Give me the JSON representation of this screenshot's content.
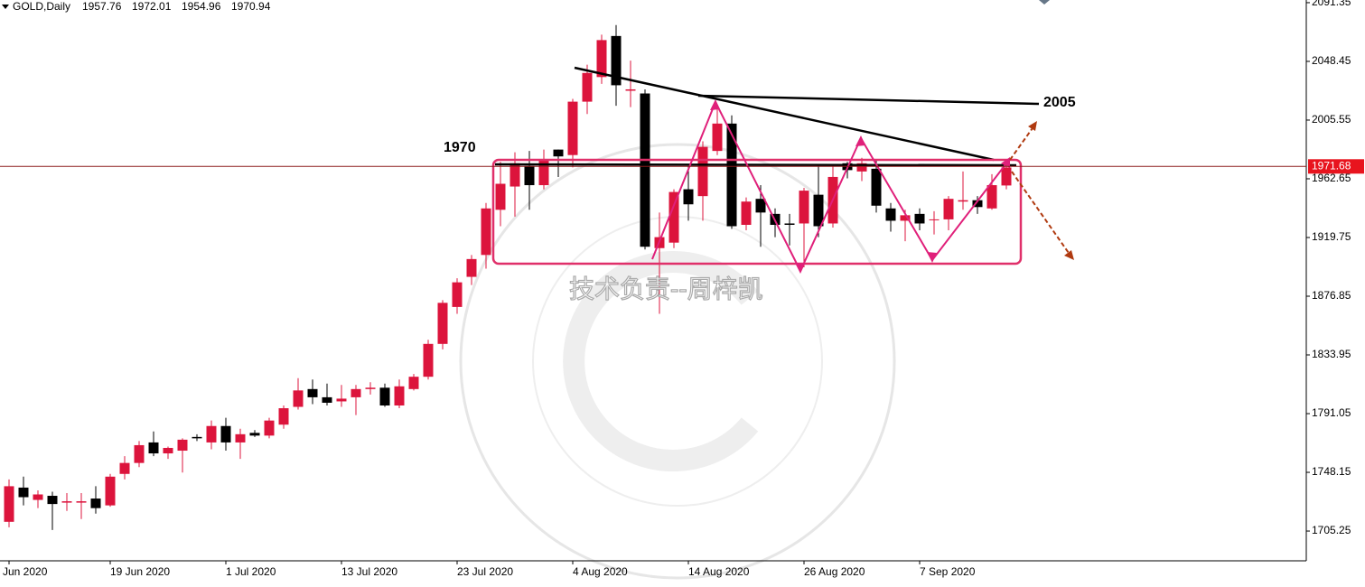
{
  "chart_data": {
    "type": "candlestick",
    "title": "GOLD,Daily",
    "categories": [
      "Jun 2020",
      null,
      null,
      null,
      null,
      null,
      null,
      "19 Jun 2020",
      null,
      null,
      null,
      null,
      null,
      null,
      null,
      "1 Jul 2020",
      null,
      null,
      null,
      null,
      null,
      null,
      null,
      "13 Jul 2020",
      null,
      null,
      null,
      null,
      null,
      null,
      null,
      "23 Jul 2020",
      null,
      null,
      null,
      null,
      null,
      null,
      null,
      "4 Aug 2020",
      null,
      null,
      null,
      null,
      null,
      null,
      null,
      "14 Aug 2020",
      null,
      null,
      null,
      null,
      null,
      null,
      null,
      "26 Aug 2020",
      null,
      null,
      null,
      null,
      null,
      null,
      null,
      "7 Sep 2020",
      null,
      null,
      null,
      null,
      null,
      null
    ],
    "open": [
      1712,
      1737,
      1728,
      1731,
      1726,
      1726,
      1729,
      1724,
      1747,
      1755,
      1770,
      1762,
      1764,
      1774,
      1770,
      1782,
      1770,
      1777,
      1775,
      1783,
      1796,
      1809,
      1803,
      1800,
      1803,
      1809,
      1810,
      1797,
      1809,
      1818,
      1842,
      1869,
      1891,
      1907,
      1940,
      1957,
      1972,
      1958,
      1984,
      1980,
      2019,
      2037,
      2067,
      2027,
      2025,
      1912,
      1916,
      1955,
      1950,
      1983,
      2003,
      1929,
      1948,
      1937,
      1930,
      1930,
      1951,
      1930,
      1974,
      1968,
      1970,
      1941,
      1932,
      1937,
      1933,
      1933,
      1946,
      1947,
      1941,
      1957.76
    ],
    "high": [
      1743,
      1745,
      1735,
      1734,
      1733,
      1733,
      1738,
      1747,
      1760,
      1771,
      1778,
      1767,
      1773,
      1776,
      1786,
      1788,
      1780,
      1779,
      1788,
      1797,
      1817,
      1816,
      1813,
      1812,
      1812,
      1814,
      1813,
      1816,
      1820,
      1845,
      1874,
      1890,
      1907,
      1945,
      1975,
      1982,
      1983,
      1984,
      1984,
      2021,
      2046,
      2068,
      2075,
      2049,
      2028,
      1938,
      1955,
      1972,
      1990,
      2015,
      2009,
      1949,
      1958,
      1941,
      1937,
      1956,
      1973,
      1972,
      1975,
      1978,
      1977,
      1945,
      1940,
      1941,
      1939,
      1950,
      1968,
      1950,
      1966,
      1972.01
    ],
    "low": [
      1708,
      1724,
      1722,
      1706,
      1720,
      1714,
      1718,
      1723,
      1743,
      1752,
      1760,
      1758,
      1748,
      1771,
      1765,
      1764,
      1758,
      1774,
      1773,
      1780,
      1794,
      1798,
      1797,
      1796,
      1790,
      1805,
      1796,
      1795,
      1808,
      1816,
      1838,
      1864,
      1885,
      1897,
      1928,
      1935,
      1940,
      1955,
      1964,
      1971,
      2010,
      2032,
      2016,
      2015,
      1911,
      1864,
      1912,
      1932,
      1932,
      1980,
      1926,
      1925,
      1913,
      1920,
      1914,
      1898,
      1920,
      1927,
      1963,
      1961,
      1938,
      1924,
      1917,
      1925,
      1922,
      1925,
      1940,
      1937,
      1940,
      1954.96
    ],
    "close": [
      1738,
      1730,
      1732,
      1725,
      1727,
      1727,
      1722,
      1745,
      1755,
      1768,
      1762,
      1766,
      1772,
      1773,
      1782,
      1770,
      1776,
      1775,
      1786,
      1795,
      1808,
      1803,
      1799,
      1802,
      1809,
      1810,
      1797,
      1811,
      1818,
      1842,
      1872,
      1887,
      1904,
      1941,
      1959,
      1974,
      1958,
      1976,
      1979,
      2019,
      2040,
      2064,
      2031,
      2028,
      1913,
      1920,
      1953,
      1944,
      1986,
      2003,
      1928,
      1946,
      1938,
      1929,
      1929,
      1954,
      1928,
      1964,
      1969,
      1974,
      1943,
      1932,
      1936,
      1930,
      1933,
      1948,
      1947,
      1942,
      1958,
      1970.94
    ],
    "up_color": "#dc143c",
    "down_color": "#000000",
    "ylim": [
      1683.5,
      2093.3
    ],
    "yticks": [
      2091.35,
      2048.45,
      2005.55,
      1962.65,
      1919.75,
      1876.85,
      1833.95,
      1791.05,
      1748.15,
      1705.25
    ],
    "current_price": 1971.68,
    "annotations": [
      "1970",
      "2005"
    ],
    "watermark": "技术负责--周梓凯"
  }
}
